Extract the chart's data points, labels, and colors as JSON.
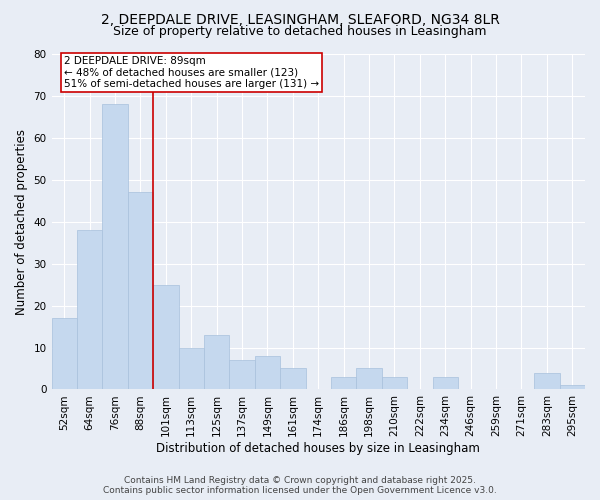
{
  "title_line1": "2, DEEPDALE DRIVE, LEASINGHAM, SLEAFORD, NG34 8LR",
  "title_line2": "Size of property relative to detached houses in Leasingham",
  "xlabel": "Distribution of detached houses by size in Leasingham",
  "ylabel": "Number of detached properties",
  "categories": [
    "52sqm",
    "64sqm",
    "76sqm",
    "88sqm",
    "101sqm",
    "113sqm",
    "125sqm",
    "137sqm",
    "149sqm",
    "161sqm",
    "174sqm",
    "186sqm",
    "198sqm",
    "210sqm",
    "222sqm",
    "234sqm",
    "246sqm",
    "259sqm",
    "271sqm",
    "283sqm",
    "295sqm"
  ],
  "values": [
    17,
    38,
    68,
    47,
    25,
    10,
    13,
    7,
    8,
    5,
    0,
    3,
    5,
    3,
    0,
    3,
    0,
    0,
    0,
    4,
    1
  ],
  "bar_color": "#c5d8ee",
  "bar_edgecolor": "#a8c0dc",
  "background_color": "#e8edf5",
  "grid_color": "#ffffff",
  "vline_color": "#cc0000",
  "vline_x": 3.5,
  "annotation_text": "2 DEEPDALE DRIVE: 89sqm\n← 48% of detached houses are smaller (123)\n51% of semi-detached houses are larger (131) →",
  "annotation_box_facecolor": "#ffffff",
  "annotation_box_edgecolor": "#cc0000",
  "ylim": [
    0,
    80
  ],
  "yticks": [
    0,
    10,
    20,
    30,
    40,
    50,
    60,
    70,
    80
  ],
  "footer_line1": "Contains HM Land Registry data © Crown copyright and database right 2025.",
  "footer_line2": "Contains public sector information licensed under the Open Government Licence v3.0.",
  "title_fontsize": 10,
  "subtitle_fontsize": 9,
  "axis_label_fontsize": 8.5,
  "tick_fontsize": 7.5,
  "annotation_fontsize": 7.5,
  "footer_fontsize": 6.5
}
